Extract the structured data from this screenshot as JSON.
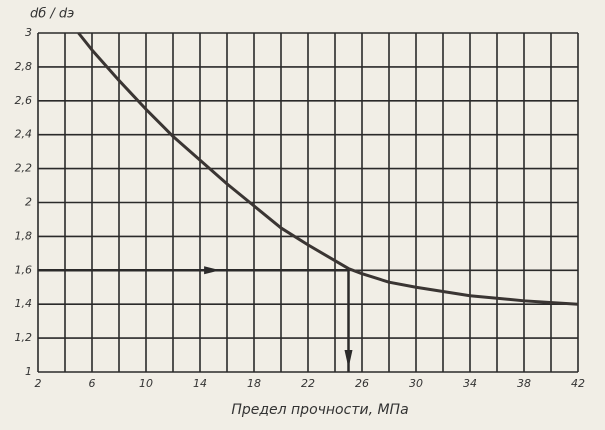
{
  "chart_data": {
    "type": "line",
    "y_label": "dб / dэ",
    "x_label": "Предел прочности, МПа",
    "x": [
      5,
      6,
      8,
      10,
      12,
      14,
      16,
      18,
      20,
      22,
      25,
      26,
      28,
      30,
      34,
      38,
      42
    ],
    "series": [
      {
        "color": "#3a3533",
        "values": [
          3.0,
          2.9,
          2.72,
          2.55,
          2.39,
          2.25,
          2.11,
          1.98,
          1.85,
          1.75,
          1.61,
          1.58,
          1.53,
          1.5,
          1.45,
          1.42,
          1.4
        ]
      }
    ],
    "guide_point": [
      25,
      1.6
    ],
    "xlim": [
      2,
      42
    ],
    "ylim": [
      1,
      3
    ],
    "xticks": [
      2,
      6,
      10,
      14,
      18,
      22,
      26,
      30,
      34,
      38,
      42
    ],
    "x_minor_ticks": [
      4,
      8,
      12,
      16,
      20,
      24,
      28,
      32,
      36,
      40
    ],
    "yticks": [
      1,
      {
        "value": 1.2,
        "label": "1,2"
      },
      {
        "value": 1.4,
        "label": "1,4"
      },
      {
        "value": 1.6,
        "label": "1,6"
      },
      {
        "value": 1.8,
        "label": "1,8"
      },
      2,
      {
        "value": 2.2,
        "label": "2,2"
      },
      {
        "value": 2.4,
        "label": "2,4"
      },
      {
        "value": 2.6,
        "label": "2,6"
      },
      {
        "value": 2.8,
        "label": "2,8"
      },
      3
    ],
    "grid": true
  }
}
